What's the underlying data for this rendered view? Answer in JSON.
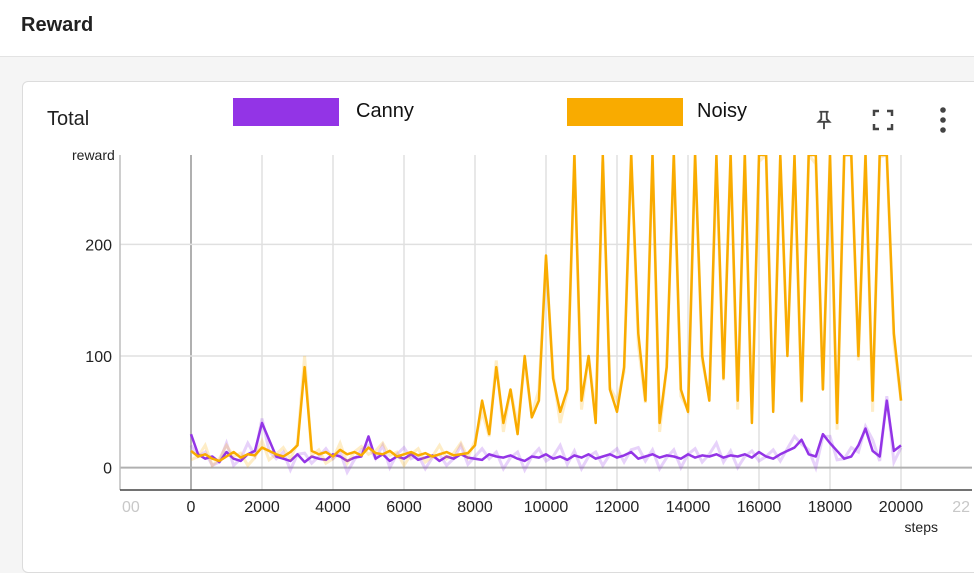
{
  "header": {
    "title": "Reward"
  },
  "card": {
    "title": "Total",
    "icons": {
      "pin": "pin-icon",
      "fullscreen": "fullscreen-icon",
      "menu": "more-vert-icon"
    }
  },
  "legend": [
    {
      "name": "Canny",
      "color": "#9334e6"
    },
    {
      "name": "Noisy",
      "color": "#f9ab00"
    }
  ],
  "chart_data": {
    "type": "line",
    "ylabel": "reward",
    "xlabel": "steps",
    "xlim": [
      -2000,
      22000
    ],
    "ylim": [
      -20,
      280
    ],
    "xticks": [
      0,
      2000,
      4000,
      6000,
      8000,
      10000,
      12000,
      14000,
      16000,
      18000,
      20000
    ],
    "xticks_partial": [
      "00",
      "22"
    ],
    "yticks": [
      0,
      100,
      200
    ],
    "grid": true,
    "legend_position": "top",
    "series": [
      {
        "name": "Canny",
        "color": "#9334e6",
        "x": [
          0,
          200,
          400,
          600,
          800,
          1000,
          1200,
          1400,
          1600,
          1800,
          2000,
          2200,
          2400,
          2600,
          2800,
          3000,
          3200,
          3400,
          3600,
          3800,
          4000,
          4200,
          4400,
          4600,
          4800,
          5000,
          5200,
          5400,
          5600,
          5800,
          6000,
          6200,
          6400,
          6600,
          6800,
          7000,
          7200,
          7400,
          7600,
          7800,
          8000,
          8200,
          8400,
          8600,
          8800,
          9000,
          9200,
          9400,
          9600,
          9800,
          10000,
          10200,
          10400,
          10600,
          10800,
          11000,
          11200,
          11400,
          11600,
          11800,
          12000,
          12200,
          12400,
          12600,
          12800,
          13000,
          13200,
          13400,
          13600,
          13800,
          14000,
          14200,
          14400,
          14600,
          14800,
          15000,
          15200,
          15400,
          15600,
          15800,
          16000,
          16200,
          16400,
          16600,
          16800,
          17000,
          17200,
          17400,
          17600,
          17800,
          18000,
          18200,
          18400,
          18600,
          18800,
          19000,
          19200,
          19400,
          19600,
          19800,
          20000
        ],
        "values": [
          30,
          12,
          8,
          10,
          5,
          14,
          8,
          6,
          12,
          15,
          40,
          25,
          10,
          8,
          6,
          12,
          5,
          10,
          8,
          7,
          12,
          10,
          6,
          9,
          10,
          28,
          8,
          12,
          6,
          10,
          8,
          12,
          7,
          9,
          11,
          6,
          10,
          8,
          12,
          9,
          8,
          7,
          12,
          10,
          9,
          11,
          8,
          6,
          10,
          9,
          12,
          8,
          10,
          7,
          11,
          9,
          12,
          8,
          10,
          12,
          9,
          11,
          14,
          8,
          10,
          12,
          9,
          11,
          10,
          8,
          12,
          9,
          11,
          10,
          12,
          9,
          11,
          10,
          12,
          9,
          14,
          10,
          8,
          12,
          15,
          18,
          25,
          12,
          10,
          30,
          22,
          15,
          8,
          10,
          20,
          35,
          15,
          10,
          60,
          15,
          20
        ]
      },
      {
        "name": "Noisy",
        "color": "#f9ab00",
        "x": [
          0,
          200,
          400,
          600,
          800,
          1000,
          1200,
          1400,
          1600,
          1800,
          2000,
          2200,
          2400,
          2600,
          2800,
          3000,
          3200,
          3400,
          3600,
          3800,
          4000,
          4200,
          4400,
          4600,
          4800,
          5000,
          5200,
          5400,
          5600,
          5800,
          6000,
          6200,
          6400,
          6600,
          6800,
          7000,
          7200,
          7400,
          7600,
          7800,
          8000,
          8200,
          8400,
          8600,
          8800,
          9000,
          9200,
          9400,
          9600,
          9800,
          10000,
          10200,
          10400,
          10600,
          10800,
          11000,
          11200,
          11400,
          11600,
          11800,
          12000,
          12200,
          12400,
          12600,
          12800,
          13000,
          13200,
          13400,
          13600,
          13800,
          14000,
          14200,
          14400,
          14600,
          14800,
          15000,
          15200,
          15400,
          15600,
          15800,
          16000,
          16200,
          16400,
          16600,
          16800,
          17000,
          17200,
          17400,
          17600,
          17800,
          18000,
          18200,
          18400,
          18600,
          18800,
          19000,
          19200,
          19400,
          19600,
          19800,
          20000
        ],
        "values": [
          15,
          10,
          12,
          8,
          6,
          10,
          14,
          9,
          12,
          11,
          18,
          15,
          12,
          10,
          14,
          20,
          90,
          15,
          12,
          14,
          10,
          16,
          12,
          14,
          11,
          18,
          13,
          12,
          15,
          10,
          12,
          14,
          11,
          13,
          10,
          12,
          14,
          11,
          12,
          13,
          20,
          60,
          30,
          90,
          40,
          70,
          30,
          100,
          45,
          60,
          190,
          80,
          50,
          70,
          280,
          60,
          100,
          40,
          280,
          70,
          50,
          90,
          280,
          120,
          60,
          280,
          40,
          90,
          280,
          70,
          50,
          280,
          100,
          60,
          280,
          80,
          280,
          60,
          280,
          40,
          280,
          280,
          50,
          280,
          100,
          280,
          60,
          280,
          280,
          70,
          280,
          40,
          280,
          280,
          100,
          280,
          60,
          280,
          280,
          120,
          60
        ]
      }
    ]
  }
}
